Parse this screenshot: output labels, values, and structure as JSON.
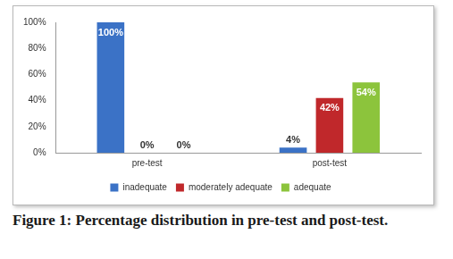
{
  "chart_data": {
    "type": "bar",
    "title": "Figure 1: Percentage distribution in pre-test and post-test.",
    "categories": [
      "pre-test",
      "post-test"
    ],
    "series": [
      {
        "name": "inadequate",
        "color": "#3b72c6",
        "values": [
          100,
          4
        ],
        "value_labels": [
          "100%",
          "4%"
        ]
      },
      {
        "name": "moderately adequate",
        "color": "#c0282b",
        "values": [
          0,
          42
        ],
        "value_labels": [
          "0%",
          "42%"
        ]
      },
      {
        "name": "adequate",
        "color": "#8cc43c",
        "values": [
          0,
          54
        ],
        "value_labels": [
          "0%",
          "54%"
        ]
      }
    ],
    "ylim": [
      0,
      100
    ],
    "yticks": [
      {
        "value": 0,
        "label": "0%"
      },
      {
        "value": 20,
        "label": "20%"
      },
      {
        "value": 40,
        "label": "40%"
      },
      {
        "value": 60,
        "label": "60%"
      },
      {
        "value": 80,
        "label": "80%"
      },
      {
        "value": 100,
        "label": "100%"
      }
    ],
    "grid": false,
    "legend": "bottom",
    "data_labels": true
  }
}
